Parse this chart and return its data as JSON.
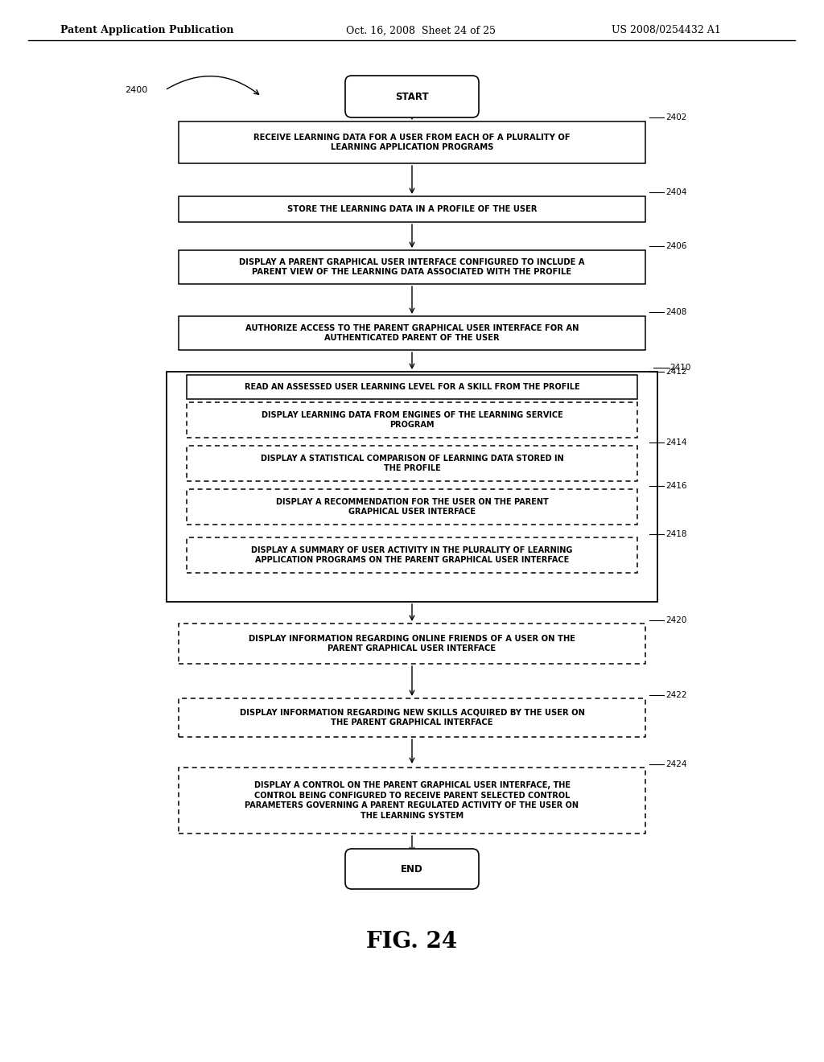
{
  "header_left": "Patent Application Publication",
  "header_mid": "Oct. 16, 2008  Sheet 24 of 25",
  "header_right": "US 2008/0254432 A1",
  "fig_label": "FIG. 24",
  "background": "#ffffff"
}
